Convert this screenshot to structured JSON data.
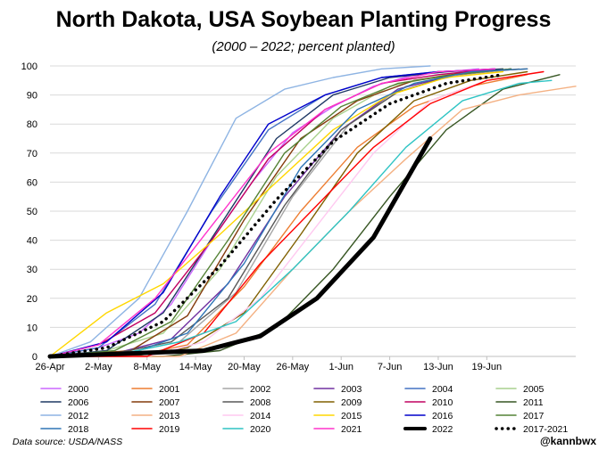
{
  "title": "North Dakota, USA Soybean Planting Progress",
  "subtitle": "(2000 – 2022; percent planted)",
  "source": "Data source: USDA/NASS",
  "credit": "@kannbwx",
  "chart_data": {
    "type": "line",
    "x_axis": {
      "kind": "date",
      "range": [
        "Apr 26",
        "Jun 30"
      ],
      "ticks": [
        "26-Apr",
        "2-May",
        "8-May",
        "14-May",
        "20-May",
        "26-May",
        "1-Jun",
        "7-Jun",
        "13-Jun",
        "19-Jun"
      ]
    },
    "y_axis": {
      "range": [
        0,
        100
      ],
      "ticks": [
        0,
        10,
        20,
        30,
        40,
        50,
        60,
        70,
        80,
        90,
        100
      ]
    },
    "grid": "horizontal",
    "legend": "bottom",
    "series": [
      {
        "name": "2000",
        "color": "#cc66ff",
        "width": 1.4,
        "points": [
          [
            "Apr 26",
            0
          ],
          [
            "May 2",
            3
          ],
          [
            "May 7",
            8
          ],
          [
            "May 11",
            18
          ],
          [
            "May 16",
            40
          ],
          [
            "May 21",
            60
          ],
          [
            "May 26",
            77
          ],
          [
            "May 31",
            86
          ],
          [
            "Jun 5",
            93
          ],
          [
            "Jun 10",
            97
          ],
          [
            "Jun 18",
            99
          ]
        ]
      },
      {
        "name": "2001",
        "color": "#ed7d31",
        "width": 1.4,
        "points": [
          [
            "Apr 26",
            0
          ],
          [
            "May 6",
            0
          ],
          [
            "May 13",
            4
          ],
          [
            "May 20",
            24
          ],
          [
            "May 27",
            50
          ],
          [
            "Jun 3",
            72
          ],
          [
            "Jun 10",
            86
          ],
          [
            "Jun 17",
            93
          ],
          [
            "Jun 24",
            97
          ]
        ]
      },
      {
        "name": "2002",
        "color": "#a5a5a5",
        "width": 1.4,
        "points": [
          [
            "Apr 26",
            0
          ],
          [
            "May 5",
            1
          ],
          [
            "May 12",
            5
          ],
          [
            "May 19",
            22
          ],
          [
            "May 26",
            55
          ],
          [
            "Jun 2",
            80
          ],
          [
            "Jun 9",
            93
          ],
          [
            "Jun 16",
            97
          ],
          [
            "Jun 23",
            99
          ]
        ]
      },
      {
        "name": "2003",
        "color": "#7030a0",
        "width": 1.4,
        "points": [
          [
            "Apr 26",
            0
          ],
          [
            "May 4",
            1
          ],
          [
            "May 11",
            6
          ],
          [
            "May 18",
            25
          ],
          [
            "May 25",
            55
          ],
          [
            "Jun 1",
            78
          ],
          [
            "Jun 8",
            92
          ],
          [
            "Jun 15",
            97
          ],
          [
            "Jun 22",
            99
          ]
        ]
      },
      {
        "name": "2004",
        "color": "#4472c4",
        "width": 1.4,
        "points": [
          [
            "Apr 26",
            0
          ],
          [
            "May 2",
            3
          ],
          [
            "May 9",
            18
          ],
          [
            "May 16",
            50
          ],
          [
            "May 23",
            78
          ],
          [
            "May 30",
            90
          ],
          [
            "Jun 6",
            96
          ],
          [
            "Jun 13",
            98
          ],
          [
            "Jun 20",
            99
          ]
        ]
      },
      {
        "name": "2005",
        "color": "#a9d18e",
        "width": 1.4,
        "points": [
          [
            "Apr 26",
            0
          ],
          [
            "May 3",
            2
          ],
          [
            "May 10",
            8
          ],
          [
            "May 17",
            30
          ],
          [
            "May 24",
            62
          ],
          [
            "May 31",
            82
          ],
          [
            "Jun 7",
            93
          ],
          [
            "Jun 14",
            97
          ],
          [
            "Jun 21",
            99
          ]
        ]
      },
      {
        "name": "2006",
        "color": "#1f3864",
        "width": 1.4,
        "points": [
          [
            "Apr 26",
            0
          ],
          [
            "May 3",
            2
          ],
          [
            "May 10",
            15
          ],
          [
            "May 17",
            45
          ],
          [
            "May 24",
            75
          ],
          [
            "May 31",
            90
          ],
          [
            "Jun 7",
            96
          ],
          [
            "Jun 14",
            98
          ],
          [
            "Jun 21",
            99
          ]
        ]
      },
      {
        "name": "2007",
        "color": "#843c0c",
        "width": 1.4,
        "points": [
          [
            "Apr 26",
            0
          ],
          [
            "May 6",
            2
          ],
          [
            "May 13",
            14
          ],
          [
            "May 20",
            47
          ],
          [
            "May 27",
            75
          ],
          [
            "Jun 3",
            88
          ],
          [
            "Jun 10",
            95
          ],
          [
            "Jun 17",
            98
          ],
          [
            "Jun 24",
            99
          ]
        ]
      },
      {
        "name": "2008",
        "color": "#595959",
        "width": 1.4,
        "points": [
          [
            "Apr 26",
            0
          ],
          [
            "May 4",
            1
          ],
          [
            "May 11",
            5
          ],
          [
            "May 18",
            20
          ],
          [
            "May 25",
            52
          ],
          [
            "Jun 1",
            78
          ],
          [
            "Jun 8",
            91
          ],
          [
            "Jun 15",
            97
          ],
          [
            "Jun 22",
            99
          ]
        ]
      },
      {
        "name": "2009",
        "color": "#806000",
        "width": 1.4,
        "points": [
          [
            "Apr 26",
            0
          ],
          [
            "May 6",
            0
          ],
          [
            "May 13",
            3
          ],
          [
            "May 20",
            15
          ],
          [
            "May 27",
            42
          ],
          [
            "Jun 3",
            70
          ],
          [
            "Jun 10",
            88
          ],
          [
            "Jun 17",
            95
          ],
          [
            "Jun 24",
            98
          ]
        ]
      },
      {
        "name": "2010",
        "color": "#c00060",
        "width": 1.4,
        "points": [
          [
            "Apr 26",
            0
          ],
          [
            "May 2",
            4
          ],
          [
            "May 9",
            15
          ],
          [
            "May 16",
            40
          ],
          [
            "May 23",
            68
          ],
          [
            "May 30",
            85
          ],
          [
            "Jun 6",
            94
          ],
          [
            "Jun 13",
            97
          ],
          [
            "Jun 20",
            99
          ]
        ]
      },
      {
        "name": "2011",
        "color": "#375623",
        "width": 1.4,
        "points": [
          [
            "Apr 26",
            0
          ],
          [
            "May 10",
            0
          ],
          [
            "May 17",
            2
          ],
          [
            "May 24",
            10
          ],
          [
            "May 31",
            30
          ],
          [
            "Jun 7",
            55
          ],
          [
            "Jun 14",
            78
          ],
          [
            "Jun 21",
            92
          ],
          [
            "Jun 28",
            97
          ]
        ]
      },
      {
        "name": "2012",
        "color": "#8eb4e3",
        "width": 1.4,
        "points": [
          [
            "Apr 26",
            0
          ],
          [
            "May 1",
            5
          ],
          [
            "May 7",
            20
          ],
          [
            "May 13",
            50
          ],
          [
            "May 19",
            82
          ],
          [
            "May 25",
            92
          ],
          [
            "May 31",
            96
          ],
          [
            "Jun 6",
            99
          ],
          [
            "Jun 12",
            100
          ]
        ]
      },
      {
        "name": "2013",
        "color": "#f4b183",
        "width": 1.4,
        "points": [
          [
            "Apr 26",
            0
          ],
          [
            "May 12",
            0
          ],
          [
            "May 19",
            8
          ],
          [
            "May 26",
            30
          ],
          [
            "Jun 2",
            50
          ],
          [
            "Jun 9",
            68
          ],
          [
            "Jun 16",
            85
          ],
          [
            "Jun 23",
            90
          ],
          [
            "Jun 30",
            93
          ]
        ]
      },
      {
        "name": "2014",
        "color": "#ffc9f0",
        "width": 1.4,
        "points": [
          [
            "Apr 26",
            0
          ],
          [
            "May 8",
            0
          ],
          [
            "May 15",
            5
          ],
          [
            "May 22",
            20
          ],
          [
            "May 29",
            45
          ],
          [
            "Jun 5",
            70
          ],
          [
            "Jun 12",
            88
          ],
          [
            "Jun 19",
            95
          ],
          [
            "Jun 26",
            98
          ]
        ]
      },
      {
        "name": "2015",
        "color": "#ffd700",
        "width": 1.4,
        "points": [
          [
            "Apr 26",
            0
          ],
          [
            "May 3",
            15
          ],
          [
            "May 10",
            25
          ],
          [
            "May 17",
            42
          ],
          [
            "May 24",
            60
          ],
          [
            "May 31",
            78
          ],
          [
            "Jun 7",
            90
          ],
          [
            "Jun 14",
            96
          ],
          [
            "Jun 21",
            98
          ]
        ]
      },
      {
        "name": "2016",
        "color": "#0000cc",
        "width": 1.4,
        "points": [
          [
            "Apr 26",
            0
          ],
          [
            "May 3",
            5
          ],
          [
            "May 10",
            22
          ],
          [
            "May 17",
            55
          ],
          [
            "May 23",
            80
          ],
          [
            "May 30",
            90
          ],
          [
            "Jun 6",
            96
          ],
          [
            "Jun 13",
            98
          ],
          [
            "Jun 20",
            99
          ]
        ]
      },
      {
        "name": "2017",
        "color": "#548235",
        "width": 1.4,
        "points": [
          [
            "Apr 26",
            0
          ],
          [
            "May 4",
            2
          ],
          [
            "May 11",
            12
          ],
          [
            "May 18",
            40
          ],
          [
            "May 25",
            70
          ],
          [
            "Jun 1",
            86
          ],
          [
            "Jun 8",
            94
          ],
          [
            "Jun 15",
            97
          ],
          [
            "Jun 22",
            99
          ]
        ]
      },
      {
        "name": "2018",
        "color": "#2e75b6",
        "width": 1.4,
        "points": [
          [
            "Apr 26",
            0
          ],
          [
            "May 6",
            1
          ],
          [
            "May 13",
            8
          ],
          [
            "May 20",
            32
          ],
          [
            "May 27",
            65
          ],
          [
            "Jun 3",
            85
          ],
          [
            "Jun 10",
            94
          ],
          [
            "Jun 17",
            98
          ],
          [
            "Jun 24",
            99
          ]
        ]
      },
      {
        "name": "2019",
        "color": "#ff0000",
        "width": 1.4,
        "points": [
          [
            "Apr 26",
            0
          ],
          [
            "May 8",
            0
          ],
          [
            "May 15",
            8
          ],
          [
            "May 22",
            32
          ],
          [
            "May 29",
            52
          ],
          [
            "Jun 5",
            72
          ],
          [
            "Jun 12",
            87
          ],
          [
            "Jun 19",
            95
          ],
          [
            "Jun 26",
            98
          ]
        ]
      },
      {
        "name": "2020",
        "color": "#2ec4c4",
        "width": 1.4,
        "points": [
          [
            "Apr 26",
            0
          ],
          [
            "May 5",
            1
          ],
          [
            "May 12",
            5
          ],
          [
            "May 19",
            12
          ],
          [
            "May 26",
            30
          ],
          [
            "Jun 2",
            50
          ],
          [
            "Jun 9",
            72
          ],
          [
            "Jun 16",
            88
          ],
          [
            "Jun 23",
            94
          ],
          [
            "Jun 27",
            95
          ]
        ]
      },
      {
        "name": "2021",
        "color": "#ff33cc",
        "width": 1.4,
        "points": [
          [
            "Apr 26",
            0
          ],
          [
            "May 2",
            4
          ],
          [
            "May 9",
            20
          ],
          [
            "May 16",
            45
          ],
          [
            "May 23",
            70
          ],
          [
            "May 30",
            85
          ],
          [
            "Jun 6",
            94
          ],
          [
            "Jun 13",
            98
          ],
          [
            "Jun 20",
            99
          ]
        ]
      },
      {
        "name": "2022",
        "color": "#000000",
        "width": 5,
        "points": [
          [
            "Apr 26",
            0
          ],
          [
            "May 15",
            2
          ],
          [
            "May 22",
            7
          ],
          [
            "May 29",
            20
          ],
          [
            "Jun 5",
            41
          ],
          [
            "Jun 12",
            75
          ]
        ]
      },
      {
        "name": "2017-2021",
        "color": "#000000",
        "width": 3.5,
        "dotted": true,
        "points": [
          [
            "Apr 26",
            0
          ],
          [
            "May 3",
            3
          ],
          [
            "May 10",
            12
          ],
          [
            "May 17",
            31
          ],
          [
            "May 24",
            54
          ],
          [
            "May 31",
            74
          ],
          [
            "Jun 7",
            87
          ],
          [
            "Jun 14",
            94
          ],
          [
            "Jun 21",
            97
          ]
        ]
      }
    ]
  }
}
